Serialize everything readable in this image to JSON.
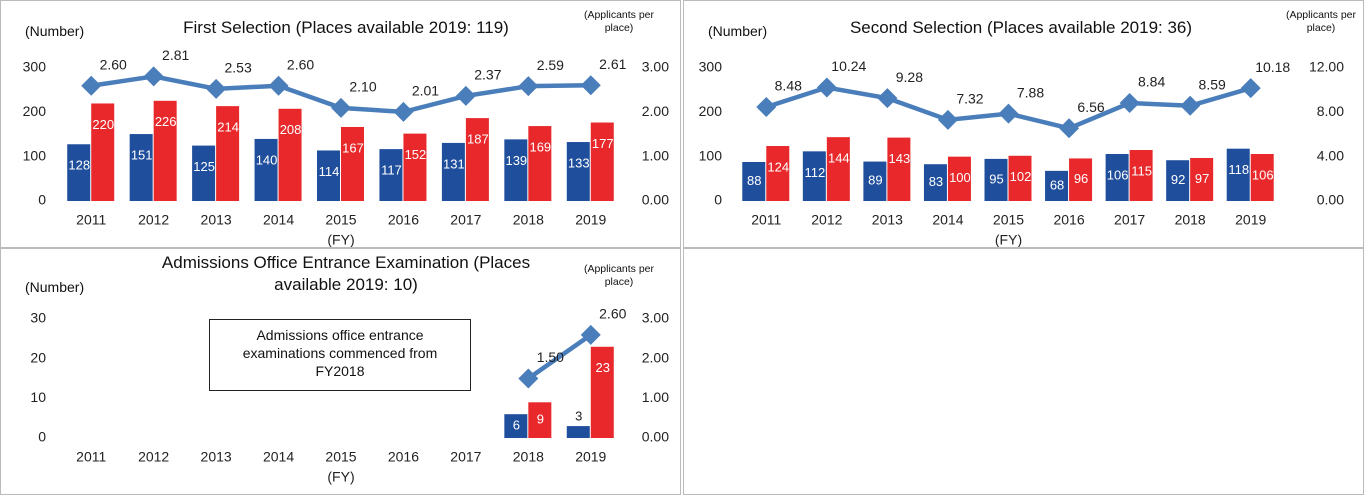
{
  "chart_data": [
    {
      "type": "bar",
      "title": "First Selection (Places available 2019: 119)",
      "ylabel": "(Number)",
      "y2label": "(Applicants per place)",
      "xlabel": "(FY)",
      "categories": [
        "2011",
        "2012",
        "2013",
        "2014",
        "2015",
        "2016",
        "2017",
        "2018",
        "2019"
      ],
      "series": [
        {
          "color": "#1f4e9c",
          "values": [
            128,
            151,
            125,
            140,
            114,
            117,
            131,
            139,
            133
          ]
        },
        {
          "color": "#e8282b",
          "values": [
            220,
            226,
            214,
            208,
            167,
            152,
            187,
            169,
            177
          ]
        },
        {
          "type": "line",
          "axis": "y2",
          "color": "#4a7ebb",
          "values": [
            2.6,
            2.81,
            2.53,
            2.6,
            2.1,
            2.01,
            2.37,
            2.59,
            2.61
          ],
          "value_labels": [
            "2.60",
            "2.81",
            "2.53",
            "2.60",
            "2.10",
            "2.01",
            "2.37",
            "2.59",
            "2.61"
          ]
        }
      ],
      "ylim": [
        0,
        300
      ],
      "yticks": [
        0,
        100,
        200,
        300
      ],
      "y2lim": [
        0,
        3
      ],
      "y2ticks": [
        {
          "value": 0,
          "label": "0.00"
        },
        {
          "value": 1,
          "label": "1.00"
        },
        {
          "value": 2,
          "label": "2.00"
        },
        {
          "value": 3,
          "label": "3.00"
        }
      ]
    },
    {
      "type": "bar",
      "title": "Second Selection (Places available 2019: 36)",
      "ylabel": "(Number)",
      "y2label": "(Applicants per place)",
      "xlabel": "(FY)",
      "categories": [
        "2011",
        "2012",
        "2013",
        "2014",
        "2015",
        "2016",
        "2017",
        "2018",
        "2019"
      ],
      "series": [
        {
          "color": "#1f4e9c",
          "values": [
            88,
            112,
            89,
            83,
            95,
            68,
            106,
            92,
            118
          ]
        },
        {
          "color": "#e8282b",
          "values": [
            124,
            144,
            143,
            100,
            102,
            96,
            115,
            97,
            106
          ]
        },
        {
          "type": "line",
          "axis": "y2",
          "color": "#4a7ebb",
          "values": [
            8.48,
            10.24,
            9.28,
            7.32,
            7.88,
            6.56,
            8.84,
            8.59,
            10.18
          ]
        }
      ],
      "ylim": [
        0,
        300
      ],
      "yticks": [
        0,
        100,
        200,
        300
      ],
      "y2lim": [
        0,
        12
      ],
      "y2ticks": [
        {
          "value": 0,
          "label": "0.00"
        },
        {
          "value": 4,
          "label": "4.00"
        },
        {
          "value": 8,
          "label": "8.00"
        },
        {
          "value": 12,
          "label": "12.00"
        }
      ]
    },
    {
      "type": "bar",
      "title": "Admissions Office Entrance Examination (Places available 2019: 10)",
      "ylabel": "(Number)",
      "y2label": "(Applicants per place)",
      "xlabel": "(FY)",
      "annotation": "Admissions office entrance examinations commenced from FY2018",
      "categories": [
        "2011",
        "2012",
        "2013",
        "2014",
        "2015",
        "2016",
        "2017",
        "2018",
        "2019"
      ],
      "series": [
        {
          "color": "#1f4e9c",
          "values": [
            null,
            null,
            null,
            null,
            null,
            null,
            null,
            6,
            3
          ]
        },
        {
          "color": "#e8282b",
          "values": [
            null,
            null,
            null,
            null,
            null,
            null,
            null,
            9,
            23
          ]
        },
        {
          "type": "line",
          "axis": "y2",
          "color": "#4a7ebb",
          "values": [
            null,
            null,
            null,
            null,
            null,
            null,
            null,
            1.5,
            2.6
          ],
          "value_labels": [
            null,
            null,
            null,
            null,
            null,
            null,
            null,
            "1.50",
            "2.60"
          ]
        }
      ],
      "ylim": [
        0,
        30
      ],
      "yticks": [
        0,
        10,
        20,
        30
      ],
      "y2lim": [
        0,
        3
      ],
      "y2ticks": [
        {
          "value": 0,
          "label": "0.00"
        },
        {
          "value": 1,
          "label": "1.00"
        },
        {
          "value": 2,
          "label": "2.00"
        },
        {
          "value": 3,
          "label": "3.00"
        }
      ]
    }
  ]
}
